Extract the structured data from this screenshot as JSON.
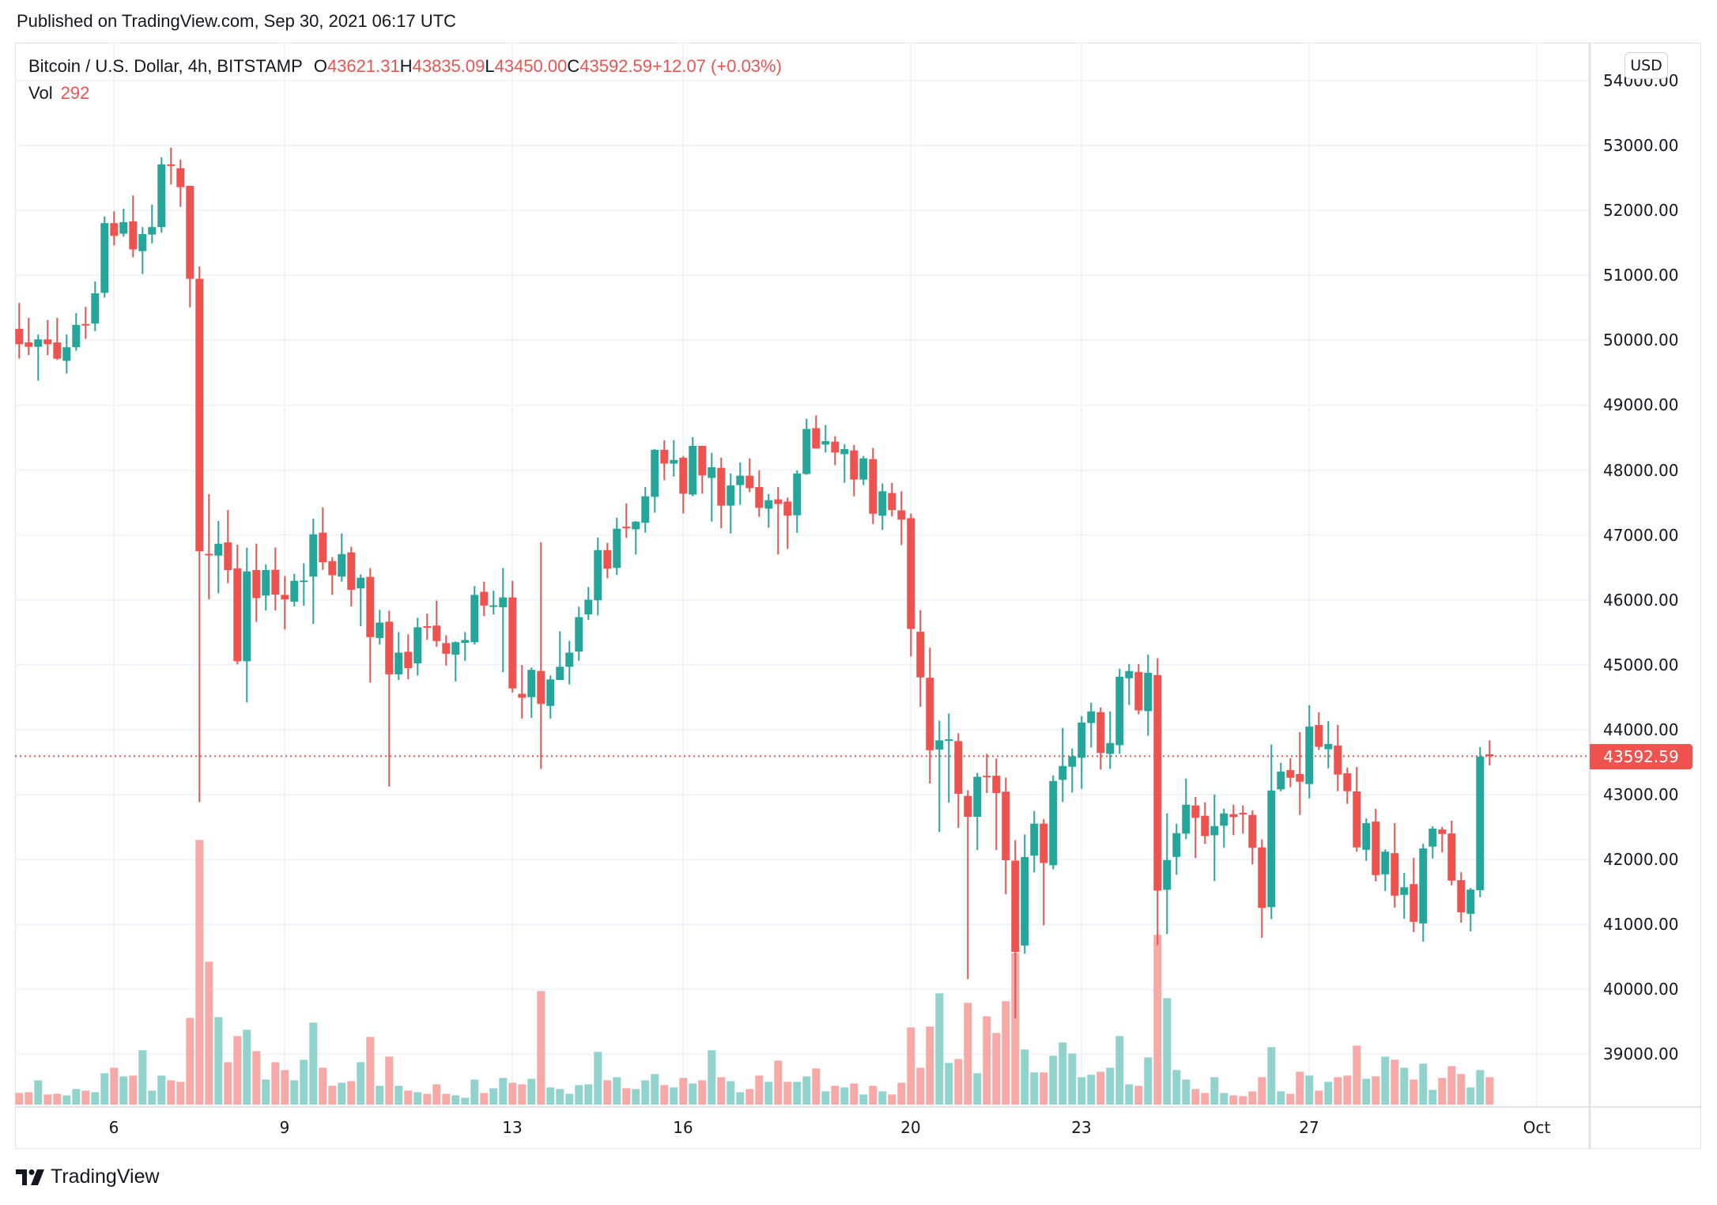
{
  "header": {
    "published": "Published on TradingView.com, Sep 30, 2021 06:17 UTC"
  },
  "legend": {
    "symbol": "Bitcoin / U.S. Dollar, 4h, BITSTAMP",
    "open_label": "O",
    "open": "43621.31",
    "high_label": "H",
    "high": "43835.09",
    "low_label": "L",
    "low": "43450.00",
    "close_label": "C",
    "close": "43592.59",
    "change": "+12.07 (+0.03%)",
    "vol_label": "Vol",
    "vol": "292"
  },
  "price_axis": {
    "currency": "USD",
    "last_price": "43592.59"
  },
  "logo": {
    "text": "TradingView",
    "icon": "tradingview-logo-icon"
  },
  "colors": {
    "up": "#26a69a",
    "down": "#ef5350",
    "up_volume": "#92d2cc",
    "down_volume": "#f7a9a7",
    "grid": "#f0f3fa"
  },
  "chart_data": {
    "type": "candlestick",
    "title": "Bitcoin / U.S. Dollar, 4h, BITSTAMP",
    "interval": "4h",
    "first_bar_time": "2021-09-04 08:00",
    "last_bar_time": "2021-09-30 04:00",
    "ylim": [
      38700,
      54500
    ],
    "y_ticks": [
      "54000.00",
      "53000.00",
      "52000.00",
      "51000.00",
      "50000.00",
      "49000.00",
      "48000.00",
      "47000.00",
      "46000.00",
      "45000.00",
      "44000.00",
      "43000.00",
      "42000.00",
      "41000.00",
      "40000.00",
      "39000.00"
    ],
    "x_ticks": [
      {
        "label": "6",
        "day": 6
      },
      {
        "label": "9",
        "day": 9
      },
      {
        "label": "13",
        "day": 13
      },
      {
        "label": "16",
        "day": 16
      },
      {
        "label": "20",
        "day": 20
      },
      {
        "label": "23",
        "day": 23
      },
      {
        "label": "27",
        "day": 27
      },
      {
        "label": "Oct",
        "day": 31
      }
    ],
    "grid": true,
    "last_price": 43592.59,
    "columns": [
      "open",
      "high",
      "low",
      "close",
      "volume"
    ],
    "candles": [
      [
        50176,
        50574,
        49716,
        49939,
        124
      ],
      [
        49966,
        50345,
        49770,
        49899,
        132
      ],
      [
        49899,
        50088,
        49378,
        50013,
        259
      ],
      [
        50013,
        50311,
        49770,
        49939,
        107
      ],
      [
        49966,
        50345,
        49696,
        49716,
        115
      ],
      [
        49682,
        50088,
        49486,
        49892,
        98
      ],
      [
        49892,
        50419,
        49838,
        50236,
        166
      ],
      [
        50250,
        50513,
        50020,
        50230,
        149
      ],
      [
        50257,
        50905,
        50142,
        50723,
        132
      ],
      [
        50730,
        51905,
        50655,
        51804,
        334
      ],
      [
        51804,
        51986,
        51459,
        51608,
        393
      ],
      [
        51642,
        52027,
        51595,
        51818,
        301
      ],
      [
        51831,
        52230,
        51277,
        51399,
        309
      ],
      [
        51372,
        51743,
        51020,
        51635,
        579
      ],
      [
        51628,
        52088,
        51493,
        51743,
        149
      ],
      [
        51743,
        52818,
        51655,
        52709,
        309
      ],
      [
        52709,
        52966,
        52399,
        52689,
        259
      ],
      [
        52649,
        52784,
        52054,
        52358,
        242
      ],
      [
        52378,
        52378,
        50507,
        50946,
        924
      ],
      [
        50946,
        51135,
        42885,
        46750,
        2821
      ],
      [
        46710,
        47628,
        46007,
        46696,
        1523
      ],
      [
        46682,
        47216,
        46101,
        46865,
        933
      ],
      [
        46885,
        47385,
        46257,
        46459,
        452
      ],
      [
        46486,
        46851,
        45006,
        45054,
        731
      ],
      [
        45054,
        46804,
        44419,
        46439,
        798
      ],
      [
        46459,
        46865,
        45662,
        46027,
        570
      ],
      [
        46067,
        46547,
        45838,
        46459,
        267
      ],
      [
        46463,
        46806,
        45838,
        46081,
        452
      ],
      [
        46077,
        46367,
        45543,
        46007,
        368
      ],
      [
        45973,
        46402,
        45899,
        46294,
        259
      ],
      [
        46285,
        46563,
        45912,
        46298,
        478
      ],
      [
        46359,
        47253,
        45630,
        47010,
        874
      ],
      [
        47036,
        47426,
        46463,
        46580,
        393
      ],
      [
        46597,
        46658,
        46077,
        46380,
        200
      ],
      [
        46359,
        47023,
        46281,
        46706,
        233
      ],
      [
        46732,
        46819,
        45899,
        46155,
        250
      ],
      [
        46177,
        46393,
        45595,
        46341,
        452
      ],
      [
        46354,
        46489,
        44727,
        45426,
        722
      ],
      [
        45413,
        45847,
        45313,
        45651,
        200
      ],
      [
        45664,
        45834,
        43124,
        44853,
        511
      ],
      [
        44853,
        45504,
        44766,
        45187,
        200
      ],
      [
        45200,
        45469,
        44779,
        44948,
        149
      ],
      [
        45022,
        45725,
        44835,
        45578,
        132
      ],
      [
        45595,
        45790,
        45387,
        45578,
        115
      ],
      [
        45604,
        45990,
        45278,
        45365,
        216
      ],
      [
        45335,
        45456,
        44987,
        45170,
        115
      ],
      [
        45157,
        45360,
        44744,
        45348,
        98
      ],
      [
        45339,
        45504,
        45061,
        45382,
        73
      ],
      [
        45348,
        46211,
        45313,
        46077,
        267
      ],
      [
        46124,
        46281,
        45751,
        45912,
        124
      ],
      [
        45908,
        46142,
        45777,
        45916,
        174
      ],
      [
        45886,
        46489,
        44887,
        46038,
        284
      ],
      [
        46038,
        46294,
        44575,
        44636,
        233
      ],
      [
        44553,
        44996,
        44171,
        44493,
        216
      ],
      [
        44501,
        44957,
        44184,
        44922,
        275
      ],
      [
        44905,
        46888,
        43395,
        44397,
        1211
      ],
      [
        44367,
        44835,
        44171,
        44775,
        183
      ],
      [
        44766,
        45517,
        44766,
        44970,
        166
      ],
      [
        44970,
        45369,
        44697,
        45187,
        115
      ],
      [
        45204,
        45894,
        45061,
        45734,
        208
      ],
      [
        45777,
        46198,
        45690,
        46003,
        216
      ],
      [
        45994,
        46962,
        45760,
        46767,
        562
      ],
      [
        46767,
        46879,
        46333,
        46480,
        259
      ],
      [
        46493,
        47266,
        46385,
        47097,
        292
      ],
      [
        47127,
        47487,
        46953,
        47110,
        174
      ],
      [
        47088,
        47214,
        46701,
        47205,
        166
      ],
      [
        47188,
        47739,
        47036,
        47596,
        259
      ],
      [
        47587,
        48325,
        47344,
        48312,
        326
      ],
      [
        48312,
        48459,
        47843,
        48099,
        208
      ],
      [
        48099,
        48459,
        47899,
        48156,
        183
      ],
      [
        48190,
        48216,
        47331,
        47635,
        284
      ],
      [
        47622,
        48507,
        47596,
        48373,
        225
      ],
      [
        48373,
        48373,
        47635,
        47917,
        259
      ],
      [
        47878,
        48264,
        47209,
        48043,
        579
      ],
      [
        48034,
        48190,
        47101,
        47452,
        292
      ],
      [
        47452,
        47947,
        47023,
        47765,
        250
      ],
      [
        47769,
        48116,
        47465,
        47913,
        132
      ],
      [
        47913,
        48181,
        47661,
        47721,
        166
      ],
      [
        47739,
        47995,
        47279,
        47418,
        309
      ],
      [
        47405,
        47630,
        47114,
        47535,
        242
      ],
      [
        47548,
        47739,
        46701,
        47478,
        469
      ],
      [
        47515,
        47575,
        46785,
        47297,
        242
      ],
      [
        47303,
        47996,
        47033,
        47947,
        242
      ],
      [
        47939,
        48792,
        47927,
        48633,
        301
      ],
      [
        48645,
        48841,
        48331,
        48331,
        385
      ],
      [
        48392,
        48694,
        48270,
        48445,
        141
      ],
      [
        48437,
        48523,
        48074,
        48270,
        200
      ],
      [
        48245,
        48400,
        47805,
        48323,
        183
      ],
      [
        48302,
        48388,
        47596,
        47853,
        225
      ],
      [
        47853,
        48217,
        47768,
        48180,
        107
      ],
      [
        48168,
        48339,
        47168,
        47327,
        200
      ],
      [
        47297,
        47793,
        47079,
        47673,
        141
      ],
      [
        47646,
        47804,
        47286,
        47384,
        107
      ],
      [
        47379,
        47673,
        46845,
        47237,
        233
      ],
      [
        47259,
        47330,
        45128,
        45553,
        823
      ],
      [
        45509,
        45842,
        44354,
        44806,
        393
      ],
      [
        44801,
        45264,
        43171,
        43684,
        832
      ],
      [
        43695,
        44141,
        42425,
        43836,
        1186
      ],
      [
        43845,
        44250,
        42877,
        43853,
        444
      ],
      [
        43825,
        43945,
        42490,
        43013,
        486
      ],
      [
        42981,
        43068,
        40157,
        42659,
        1085
      ],
      [
        42659,
        43335,
        42147,
        43275,
        334
      ],
      [
        43291,
        43629,
        43024,
        43280,
        941
      ],
      [
        43291,
        43558,
        42147,
        43024,
        764
      ],
      [
        43046,
        43264,
        41465,
        41989,
        1102
      ],
      [
        41983,
        42299,
        39555,
        40577,
        1616
      ],
      [
        40675,
        42386,
        40550,
        42038,
        587
      ],
      [
        42060,
        42748,
        41803,
        42553,
        343
      ],
      [
        42553,
        42626,
        40987,
        41948,
        343
      ],
      [
        41912,
        43296,
        41851,
        43210,
        520
      ],
      [
        43227,
        44026,
        42886,
        43442,
        663
      ],
      [
        43430,
        43710,
        43032,
        43592,
        545
      ],
      [
        43568,
        44209,
        43089,
        44111,
        292
      ],
      [
        44103,
        44416,
        43726,
        44282,
        318
      ],
      [
        44270,
        44343,
        43385,
        43641,
        351
      ],
      [
        43628,
        44282,
        43397,
        43795,
        393
      ],
      [
        43762,
        44939,
        43628,
        44817,
        731
      ],
      [
        44793,
        45012,
        44383,
        44903,
        216
      ],
      [
        44890,
        45012,
        44237,
        44298,
        200
      ],
      [
        44286,
        45158,
        43908,
        44878,
        503
      ],
      [
        44842,
        45101,
        40682,
        41522,
        1810
      ],
      [
        41534,
        42711,
        40853,
        41993,
        1135
      ],
      [
        42040,
        42553,
        41766,
        42407,
        368
      ],
      [
        42399,
        43247,
        42314,
        42845,
        267
      ],
      [
        42833,
        42967,
        42021,
        42642,
        166
      ],
      [
        42675,
        42882,
        42241,
        42362,
        124
      ],
      [
        42374,
        43003,
        41668,
        42516,
        292
      ],
      [
        42521,
        42784,
        42180,
        42711,
        124
      ],
      [
        42699,
        42845,
        42374,
        42654,
        98
      ],
      [
        42719,
        42833,
        42399,
        42699,
        90
      ],
      [
        42687,
        42760,
        41924,
        42180,
        141
      ],
      [
        42188,
        42310,
        40792,
        41254,
        292
      ],
      [
        41267,
        43770,
        41084,
        43064,
        613
      ],
      [
        43081,
        43490,
        43050,
        43357,
        141
      ],
      [
        43378,
        43561,
        43114,
        43260,
        115
      ],
      [
        43317,
        43963,
        42687,
        43199,
        351
      ],
      [
        43163,
        44378,
        42943,
        44049,
        309
      ],
      [
        44073,
        44268,
        43687,
        43736,
        149
      ],
      [
        43699,
        44134,
        43407,
        43780,
        242
      ],
      [
        43756,
        44073,
        43053,
        43309,
        292
      ],
      [
        43329,
        43415,
        42858,
        43053,
        309
      ],
      [
        43049,
        43427,
        42122,
        42187,
        629
      ],
      [
        42150,
        42634,
        41980,
        42561,
        275
      ],
      [
        42585,
        42780,
        41663,
        41760,
        301
      ],
      [
        41772,
        42158,
        41516,
        42122,
        511
      ],
      [
        42098,
        42561,
        41260,
        41443,
        478
      ],
      [
        41455,
        41793,
        41089,
        41573,
        393
      ],
      [
        41622,
        42024,
        40882,
        41041,
        267
      ],
      [
        41016,
        42244,
        40736,
        42171,
        436
      ],
      [
        42199,
        42512,
        42016,
        42476,
        157
      ],
      [
        42463,
        42500,
        42110,
        42394,
        284
      ],
      [
        42402,
        42598,
        41602,
        41675,
        410
      ],
      [
        41683,
        41805,
        41028,
        41187,
        326
      ],
      [
        41163,
        41561,
        40894,
        41537,
        183
      ],
      [
        41528,
        43732,
        41419,
        43585,
        368
      ],
      [
        43621.31,
        43835.09,
        43450.0,
        43592.59,
        292
      ]
    ]
  }
}
